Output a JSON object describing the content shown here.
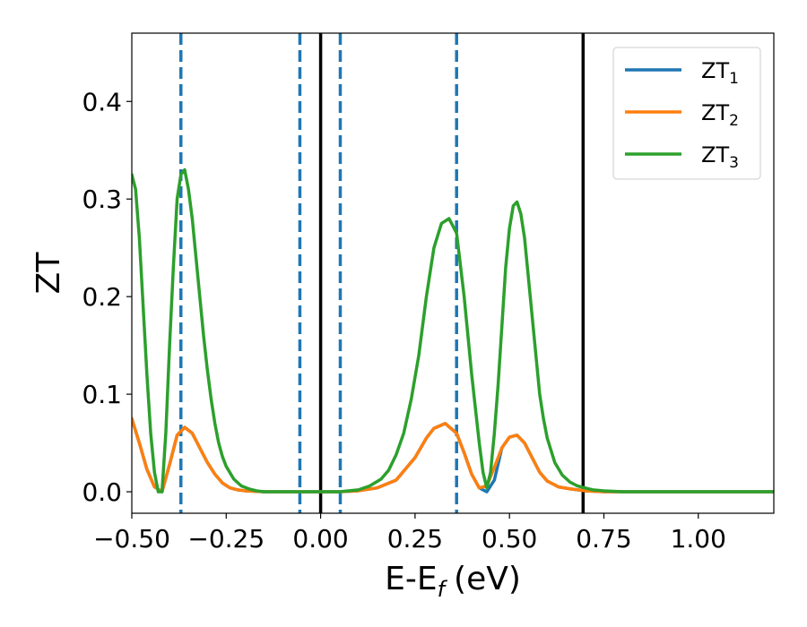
{
  "chart_data": {
    "type": "line",
    "xlabel": "E-E",
    "xlabel_sub": "f",
    "xlabel_unit": "(eV)",
    "ylabel": "ZT",
    "xlim": [
      -0.5,
      1.2
    ],
    "ylim": [
      -0.022,
      0.47
    ],
    "grid": false,
    "legend_position": "top-right",
    "x_ticks": [
      -0.5,
      -0.25,
      0.0,
      0.25,
      0.5,
      0.75,
      1.0
    ],
    "x_tick_labels": [
      "−0.50",
      "−0.25",
      "0.00",
      "0.25",
      "0.50",
      "0.75",
      "1.00"
    ],
    "y_ticks": [
      0.0,
      0.1,
      0.2,
      0.3,
      0.4
    ],
    "y_tick_labels": [
      "0.0",
      "0.1",
      "0.2",
      "0.3",
      "0.4"
    ],
    "series": [
      {
        "name": "ZT",
        "name_sub": "1",
        "color": "#1f77b4",
        "x": [
          -0.5,
          -0.48,
          -0.46,
          -0.44,
          -0.42,
          -0.4,
          -0.38,
          -0.36,
          -0.34,
          -0.32,
          -0.3,
          -0.28,
          -0.26,
          -0.24,
          -0.22,
          -0.2,
          -0.15,
          -0.1,
          -0.05,
          0.0,
          0.05,
          0.1,
          0.15,
          0.2,
          0.25,
          0.28,
          0.3,
          0.33,
          0.36,
          0.38,
          0.4,
          0.42,
          0.44,
          0.46,
          0.48,
          0.5,
          0.52,
          0.54,
          0.56,
          0.58,
          0.6,
          0.63,
          0.66,
          0.7,
          0.75,
          0.8,
          0.9,
          1.0,
          1.2
        ],
        "y": [
          0.075,
          0.05,
          0.023,
          0.005,
          0.0,
          0.028,
          0.058,
          0.066,
          0.06,
          0.045,
          0.03,
          0.018,
          0.009,
          0.004,
          0.002,
          0.001,
          0.0,
          0.0,
          0.0,
          0.0,
          0.0,
          0.001,
          0.004,
          0.012,
          0.035,
          0.055,
          0.065,
          0.07,
          0.06,
          0.04,
          0.018,
          0.004,
          0.0,
          0.012,
          0.045,
          0.056,
          0.058,
          0.05,
          0.035,
          0.02,
          0.011,
          0.005,
          0.003,
          0.001,
          0.0,
          0.0,
          0.0,
          0.0,
          0.0
        ]
      },
      {
        "name": "ZT",
        "name_sub": "2",
        "color": "#ff7f0e",
        "x": [
          -0.5,
          -0.48,
          -0.46,
          -0.44,
          -0.42,
          -0.4,
          -0.38,
          -0.36,
          -0.34,
          -0.32,
          -0.3,
          -0.28,
          -0.26,
          -0.24,
          -0.22,
          -0.2,
          -0.15,
          -0.1,
          -0.05,
          0.0,
          0.05,
          0.1,
          0.15,
          0.2,
          0.25,
          0.28,
          0.3,
          0.33,
          0.36,
          0.38,
          0.4,
          0.42,
          0.44,
          0.46,
          0.48,
          0.5,
          0.52,
          0.54,
          0.56,
          0.58,
          0.6,
          0.63,
          0.66,
          0.7,
          0.75,
          0.8,
          0.9,
          1.0,
          1.2
        ],
        "y": [
          0.075,
          0.05,
          0.023,
          0.005,
          0.0,
          0.028,
          0.058,
          0.066,
          0.06,
          0.045,
          0.03,
          0.018,
          0.009,
          0.004,
          0.002,
          0.001,
          0.0,
          0.0,
          0.0,
          0.0,
          0.0,
          0.001,
          0.004,
          0.012,
          0.035,
          0.055,
          0.065,
          0.07,
          0.06,
          0.04,
          0.018,
          0.004,
          0.006,
          0.025,
          0.045,
          0.056,
          0.058,
          0.05,
          0.035,
          0.02,
          0.011,
          0.005,
          0.003,
          0.001,
          0.0,
          0.0,
          0.0,
          0.0,
          0.0
        ]
      },
      {
        "name": "ZT",
        "name_sub": "3",
        "color": "#2ca02c",
        "x": [
          -0.5,
          -0.49,
          -0.48,
          -0.47,
          -0.46,
          -0.45,
          -0.44,
          -0.43,
          -0.42,
          -0.41,
          -0.4,
          -0.39,
          -0.38,
          -0.37,
          -0.36,
          -0.35,
          -0.34,
          -0.33,
          -0.32,
          -0.31,
          -0.3,
          -0.29,
          -0.28,
          -0.27,
          -0.26,
          -0.25,
          -0.23,
          -0.21,
          -0.19,
          -0.17,
          -0.15,
          -0.1,
          -0.05,
          0.0,
          0.05,
          0.1,
          0.13,
          0.16,
          0.18,
          0.2,
          0.22,
          0.24,
          0.26,
          0.28,
          0.3,
          0.32,
          0.34,
          0.36,
          0.38,
          0.4,
          0.42,
          0.43,
          0.44,
          0.45,
          0.46,
          0.47,
          0.48,
          0.49,
          0.5,
          0.51,
          0.52,
          0.53,
          0.54,
          0.55,
          0.56,
          0.57,
          0.58,
          0.59,
          0.6,
          0.62,
          0.64,
          0.66,
          0.68,
          0.7,
          0.72,
          0.75,
          0.8,
          0.9,
          1.0,
          1.2
        ],
        "y": [
          0.325,
          0.31,
          0.26,
          0.19,
          0.12,
          0.06,
          0.02,
          0.0,
          0.0,
          0.06,
          0.15,
          0.23,
          0.3,
          0.325,
          0.33,
          0.31,
          0.28,
          0.24,
          0.2,
          0.16,
          0.125,
          0.095,
          0.07,
          0.05,
          0.036,
          0.026,
          0.013,
          0.006,
          0.003,
          0.001,
          0.0,
          0.0,
          0.0,
          0.0,
          0.0,
          0.002,
          0.006,
          0.013,
          0.022,
          0.038,
          0.06,
          0.095,
          0.14,
          0.2,
          0.25,
          0.275,
          0.28,
          0.265,
          0.2,
          0.12,
          0.05,
          0.02,
          0.004,
          0.02,
          0.06,
          0.11,
          0.17,
          0.23,
          0.27,
          0.293,
          0.297,
          0.285,
          0.26,
          0.22,
          0.18,
          0.14,
          0.1,
          0.075,
          0.055,
          0.03,
          0.017,
          0.01,
          0.006,
          0.004,
          0.002,
          0.001,
          0.0,
          0.0,
          0.0,
          0.0
        ]
      }
    ],
    "vertical_lines": [
      {
        "x": -0.37,
        "style": "dashed",
        "color": "#1f77b4"
      },
      {
        "x": -0.055,
        "style": "dashed",
        "color": "#1f77b4"
      },
      {
        "x": 0.052,
        "style": "dashed",
        "color": "#1f77b4"
      },
      {
        "x": 0.36,
        "style": "dashed",
        "color": "#1f77b4"
      },
      {
        "x": 0.0,
        "style": "solid",
        "color": "#000000"
      },
      {
        "x": 0.695,
        "style": "solid",
        "color": "#000000"
      }
    ]
  }
}
